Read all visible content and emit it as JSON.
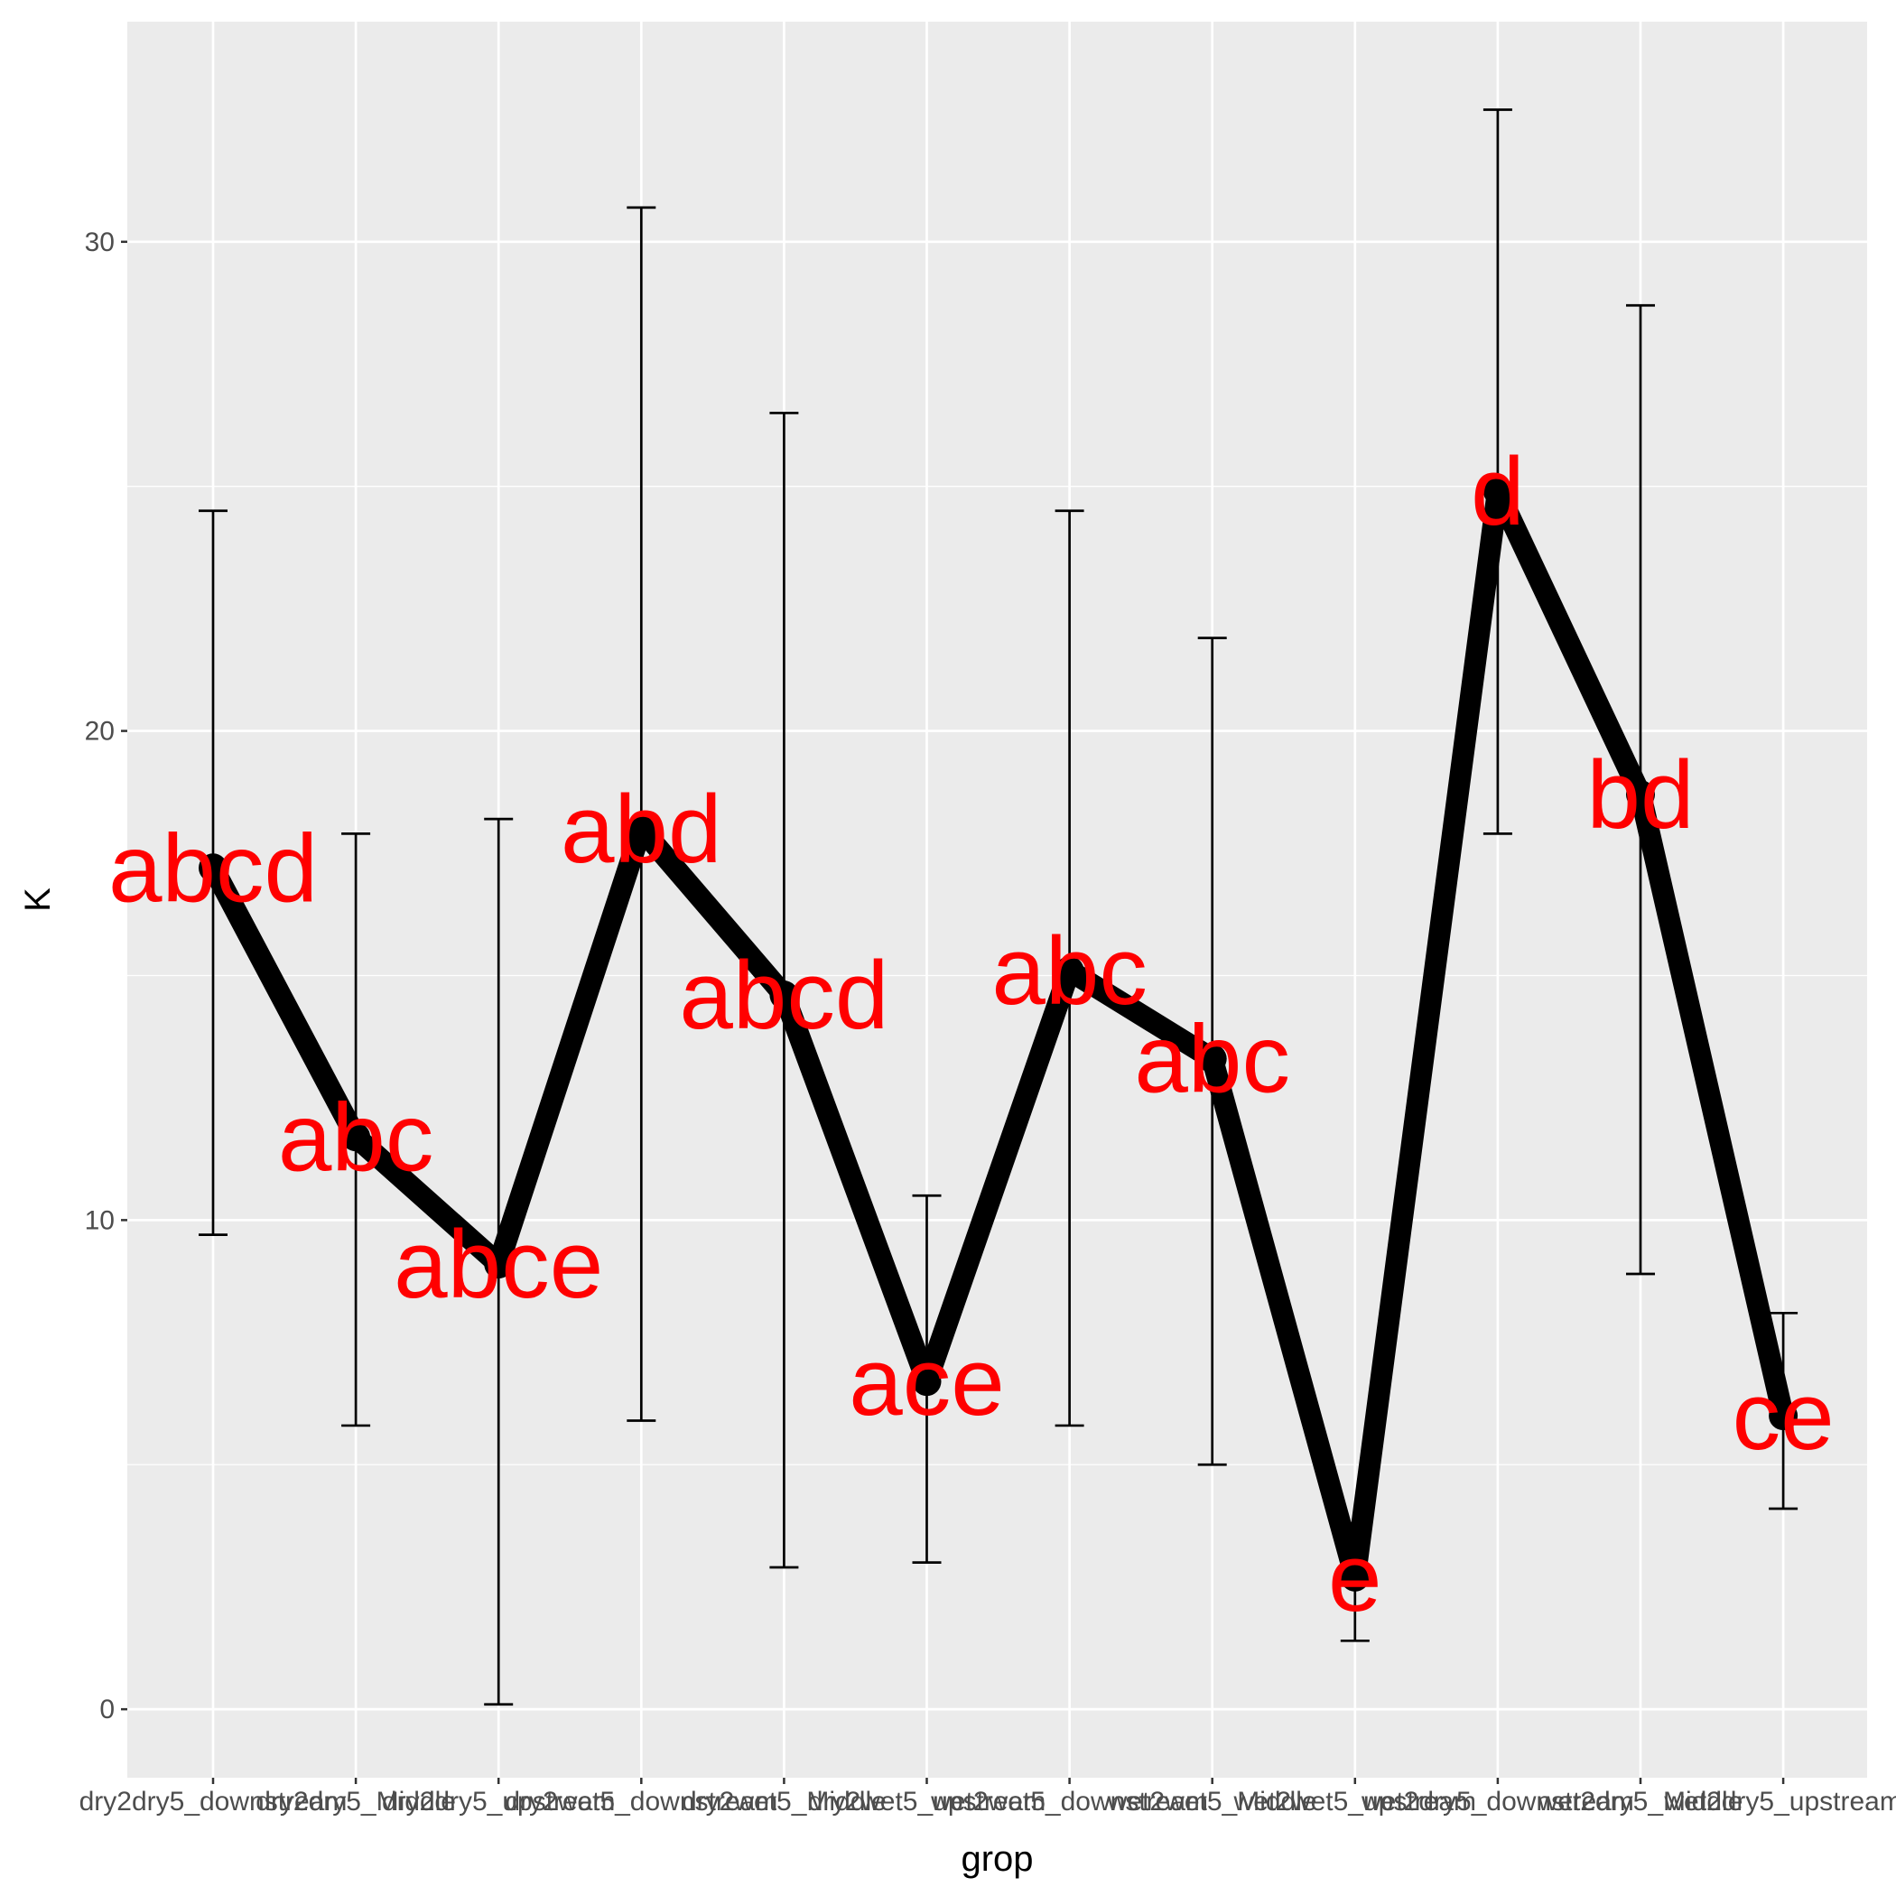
{
  "chart_data": {
    "type": "line",
    "xlabel": "grop",
    "ylabel": "K",
    "ylim": [
      -1.4,
      34.5
    ],
    "yticks": [
      0,
      10,
      20,
      30
    ],
    "categories": [
      "dry2dry5_downstream",
      "dry2dry5_Middle",
      "dry2dry5_upstream",
      "dry2wet5_downstream",
      "dry2wet5_Middle",
      "dry2wet5_upstream",
      "wet2wet5_downstream",
      "wet2wet5_Middle",
      "wet2wet5_upstream",
      "wet2dry5_downstream",
      "wet2dry5_Middle",
      "wet2dry5_upstream"
    ],
    "values": [
      17.2,
      11.7,
      9.1,
      18.0,
      14.6,
      6.7,
      15.1,
      13.3,
      2.7,
      24.9,
      18.7,
      6.0
    ],
    "error_low": [
      9.7,
      5.8,
      0.1,
      5.9,
      2.9,
      3.0,
      5.8,
      5.0,
      1.4,
      17.9,
      8.9,
      4.1
    ],
    "error_high": [
      24.5,
      17.9,
      18.2,
      30.7,
      26.5,
      10.5,
      24.5,
      21.9,
      3.8,
      32.7,
      28.7,
      8.1
    ],
    "letters": [
      "abcd",
      "abc",
      "abce",
      "abd",
      "abcd",
      "ace",
      "abc",
      "abc",
      "e",
      "d",
      "bd",
      "ce"
    ],
    "grid": true,
    "colors": {
      "panel": "#ebebeb",
      "grid": "#ffffff",
      "line": "#000000",
      "letters": "#ff0000",
      "tick_text": "#4d4d4d"
    }
  }
}
